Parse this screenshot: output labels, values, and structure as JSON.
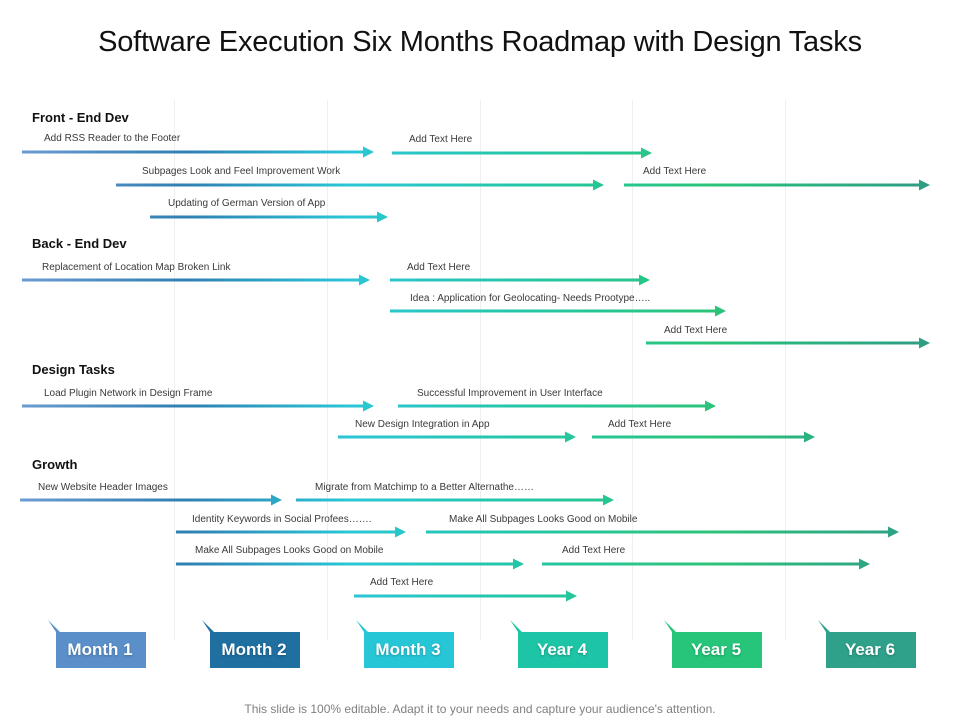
{
  "title": "Software Execution Six Months Roadmap with Design Tasks",
  "footer": "This slide is 100% editable. Adapt it to your needs and capture your audience's attention.",
  "sections": [
    {
      "label": "Front - End Dev"
    },
    {
      "label": "Back - End Dev"
    },
    {
      "label": "Design Tasks"
    },
    {
      "label": "Growth"
    }
  ],
  "tasks": [
    {
      "label": "Add RSS Reader to the Footer",
      "section": "Front - End Dev"
    },
    {
      "label": "Add Text Here",
      "section": "Front - End Dev"
    },
    {
      "label": "Subpages Look and Feel Improvement Work",
      "section": "Front - End Dev"
    },
    {
      "label": "Add Text Here",
      "section": "Front - End Dev"
    },
    {
      "label": "Updating of German Version of App",
      "section": "Front - End Dev"
    },
    {
      "label": "Replacement of Location Map Broken Link",
      "section": "Back - End Dev"
    },
    {
      "label": "Add Text Here",
      "section": "Back - End Dev"
    },
    {
      "label": "Idea : Application for Geolocating- Needs Prootype…..",
      "section": "Back - End Dev"
    },
    {
      "label": "Add Text Here",
      "section": "Back - End Dev"
    },
    {
      "label": "Load Plugin Network in Design Frame",
      "section": "Design Tasks"
    },
    {
      "label": "Successful Improvement in User Interface",
      "section": "Design Tasks"
    },
    {
      "label": "New Design Integration in App",
      "section": "Design Tasks"
    },
    {
      "label": "Add Text Here",
      "section": "Design Tasks"
    },
    {
      "label": "New Website Header Images",
      "section": "Growth"
    },
    {
      "label": "Migrate from Matchimp to a Better Alternathe……",
      "section": "Growth"
    },
    {
      "label": "Identity Keywords in Social Profees…….",
      "section": "Growth"
    },
    {
      "label": "Make All Subpages Looks Good on Mobile",
      "section": "Growth"
    },
    {
      "label": "Make All Subpages Looks Good on Mobile",
      "section": "Growth"
    },
    {
      "label": "Add Text Here",
      "section": "Growth"
    },
    {
      "label": "Add Text Here",
      "section": "Growth"
    }
  ],
  "periods": [
    {
      "label": "Month 1",
      "color": "#5b8fc9"
    },
    {
      "label": "Month 2",
      "color": "#1f6fa0"
    },
    {
      "label": "Month 3",
      "color": "#27c6d6"
    },
    {
      "label": "Year 4",
      "color": "#1ec4a6"
    },
    {
      "label": "Year 5",
      "color": "#27c57a"
    },
    {
      "label": "Year 6",
      "color": "#2fa18a"
    }
  ]
}
